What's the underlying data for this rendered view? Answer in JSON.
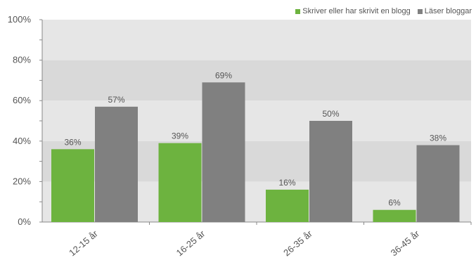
{
  "chart_data": {
    "type": "bar",
    "title": "",
    "xlabel": "",
    "ylabel": "",
    "categories": [
      "12-15 år",
      "16-25 år",
      "26-35 år",
      "36-45 år"
    ],
    "series": [
      {
        "name": "Skriver eller har skrivit en blogg",
        "color": "#6db33f",
        "values": [
          36,
          39,
          16,
          6
        ],
        "labels": [
          "36%",
          "39%",
          "16%",
          "6%"
        ]
      },
      {
        "name": "Läser bloggar",
        "color": "#808080",
        "values": [
          57,
          69,
          50,
          38
        ],
        "labels": [
          "57%",
          "69%",
          "50%",
          "38%"
        ]
      }
    ],
    "ylim": [
      0,
      100
    ],
    "yticks": [
      0,
      20,
      40,
      60,
      80,
      100
    ],
    "ytick_labels": [
      "0%",
      "20%",
      "40%",
      "60%",
      "80%",
      "100%"
    ],
    "legend_position": "top-right",
    "grid": false,
    "background_bands": [
      "#e6e6e6",
      "#d9d9d9"
    ]
  }
}
